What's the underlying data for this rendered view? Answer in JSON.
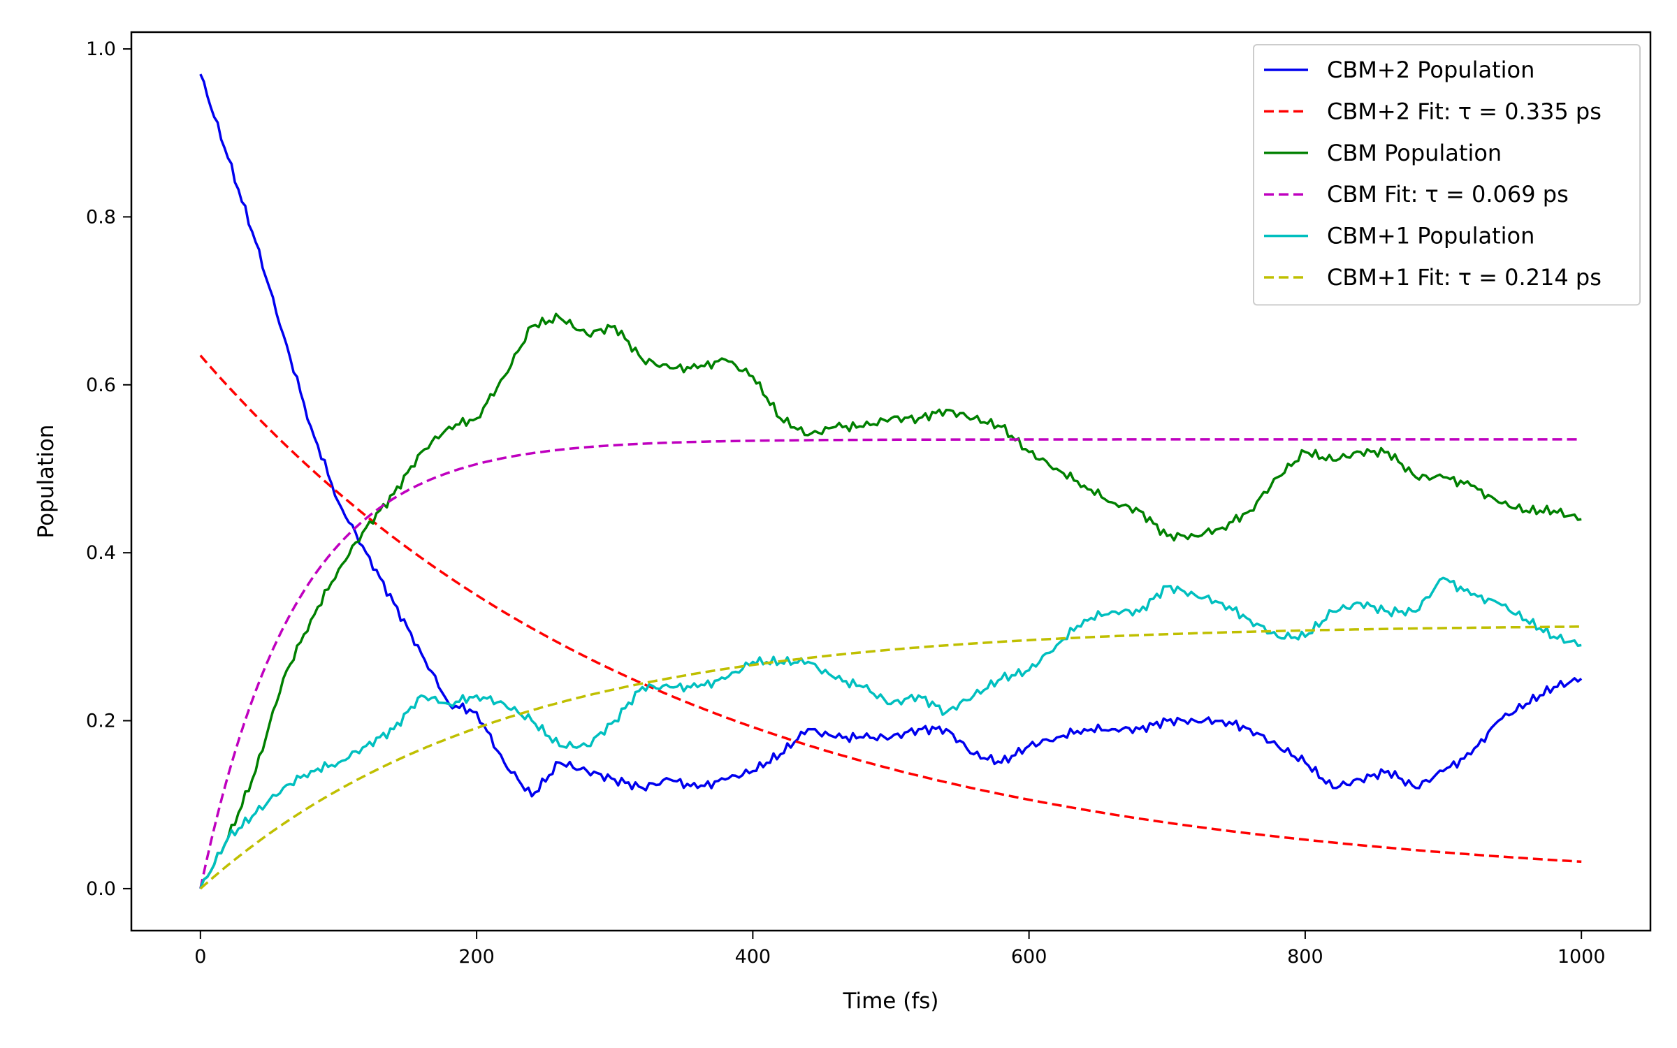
{
  "chart_data": {
    "type": "line",
    "title": "",
    "xlabel": "Time (fs)",
    "ylabel": "Population",
    "xlim": [
      -50,
      1050
    ],
    "ylim": [
      -0.05,
      1.02
    ],
    "xticks": [
      0,
      200,
      400,
      600,
      800,
      1000
    ],
    "xtick_labels": [
      "0",
      "200",
      "400",
      "600",
      "800",
      "1000"
    ],
    "yticks": [
      0.0,
      0.2,
      0.4,
      0.6,
      0.8,
      1.0
    ],
    "ytick_labels": [
      "0.0",
      "0.2",
      "0.4",
      "0.6",
      "0.8",
      "1.0"
    ],
    "grid": false,
    "legend_position": "top-right",
    "series": [
      {
        "name": "CBM+2 Population",
        "color": "#0000ee",
        "style": "solid",
        "x": [
          0,
          20,
          40,
          60,
          80,
          100,
          120,
          140,
          160,
          180,
          200,
          220,
          240,
          260,
          280,
          300,
          320,
          340,
          360,
          380,
          400,
          420,
          440,
          460,
          480,
          500,
          520,
          540,
          560,
          580,
          600,
          620,
          640,
          660,
          680,
          700,
          720,
          740,
          760,
          780,
          800,
          820,
          840,
          860,
          880,
          900,
          920,
          940,
          960,
          980,
          1000
        ],
        "y": [
          0.97,
          0.87,
          0.77,
          0.66,
          0.55,
          0.46,
          0.4,
          0.34,
          0.28,
          0.22,
          0.21,
          0.15,
          0.11,
          0.15,
          0.14,
          0.13,
          0.12,
          0.13,
          0.12,
          0.13,
          0.14,
          0.16,
          0.19,
          0.18,
          0.18,
          0.18,
          0.19,
          0.19,
          0.16,
          0.15,
          0.17,
          0.18,
          0.19,
          0.19,
          0.19,
          0.2,
          0.2,
          0.2,
          0.19,
          0.17,
          0.15,
          0.12,
          0.13,
          0.14,
          0.12,
          0.14,
          0.16,
          0.2,
          0.22,
          0.24,
          0.25
        ]
      },
      {
        "name": "CBM+2 Fit: τ = 0.335 ps",
        "color": "#ff0000",
        "style": "dashed",
        "func": "exp_decay",
        "a": 0.635,
        "tau": 335,
        "c": 0
      },
      {
        "name": "CBM Population",
        "color": "#008000",
        "style": "solid",
        "x": [
          0,
          20,
          40,
          60,
          80,
          100,
          120,
          140,
          160,
          180,
          200,
          220,
          240,
          260,
          280,
          300,
          320,
          340,
          360,
          380,
          400,
          420,
          440,
          460,
          480,
          500,
          520,
          540,
          560,
          580,
          600,
          620,
          640,
          660,
          680,
          700,
          720,
          740,
          760,
          780,
          800,
          820,
          840,
          860,
          880,
          900,
          920,
          940,
          960,
          980,
          1000
        ],
        "y": [
          0.0,
          0.06,
          0.14,
          0.25,
          0.32,
          0.38,
          0.43,
          0.47,
          0.52,
          0.55,
          0.56,
          0.61,
          0.67,
          0.68,
          0.66,
          0.67,
          0.63,
          0.62,
          0.62,
          0.63,
          0.61,
          0.56,
          0.54,
          0.55,
          0.55,
          0.56,
          0.56,
          0.57,
          0.56,
          0.55,
          0.52,
          0.5,
          0.48,
          0.46,
          0.45,
          0.42,
          0.42,
          0.43,
          0.45,
          0.49,
          0.52,
          0.51,
          0.52,
          0.52,
          0.49,
          0.49,
          0.48,
          0.46,
          0.45,
          0.45,
          0.44
        ]
      },
      {
        "name": "CBM Fit: τ = 0.069 ps",
        "color": "#bf00bf",
        "style": "dashed",
        "func": "exp_rise",
        "a": 0.535,
        "tau": 69,
        "c": 0
      },
      {
        "name": "CBM+1 Population",
        "color": "#00bfbf",
        "style": "solid",
        "x": [
          0,
          20,
          40,
          60,
          80,
          100,
          120,
          140,
          160,
          180,
          200,
          220,
          240,
          260,
          280,
          300,
          320,
          340,
          360,
          380,
          400,
          420,
          440,
          460,
          480,
          500,
          520,
          540,
          560,
          580,
          600,
          620,
          640,
          660,
          680,
          700,
          720,
          740,
          760,
          780,
          800,
          820,
          840,
          860,
          880,
          900,
          920,
          940,
          960,
          980,
          1000
        ],
        "y": [
          0.0,
          0.06,
          0.09,
          0.12,
          0.14,
          0.15,
          0.17,
          0.19,
          0.23,
          0.22,
          0.23,
          0.22,
          0.2,
          0.17,
          0.17,
          0.2,
          0.24,
          0.24,
          0.24,
          0.25,
          0.27,
          0.27,
          0.27,
          0.25,
          0.24,
          0.22,
          0.23,
          0.21,
          0.23,
          0.25,
          0.26,
          0.29,
          0.32,
          0.33,
          0.33,
          0.36,
          0.35,
          0.34,
          0.32,
          0.3,
          0.3,
          0.33,
          0.34,
          0.33,
          0.33,
          0.37,
          0.35,
          0.34,
          0.32,
          0.3,
          0.29
        ]
      },
      {
        "name": "CBM+1 Fit: τ = 0.214 ps",
        "color": "#bfbf00",
        "style": "dashed",
        "func": "exp_rise",
        "a": 0.315,
        "tau": 214,
        "c": 0
      }
    ]
  }
}
